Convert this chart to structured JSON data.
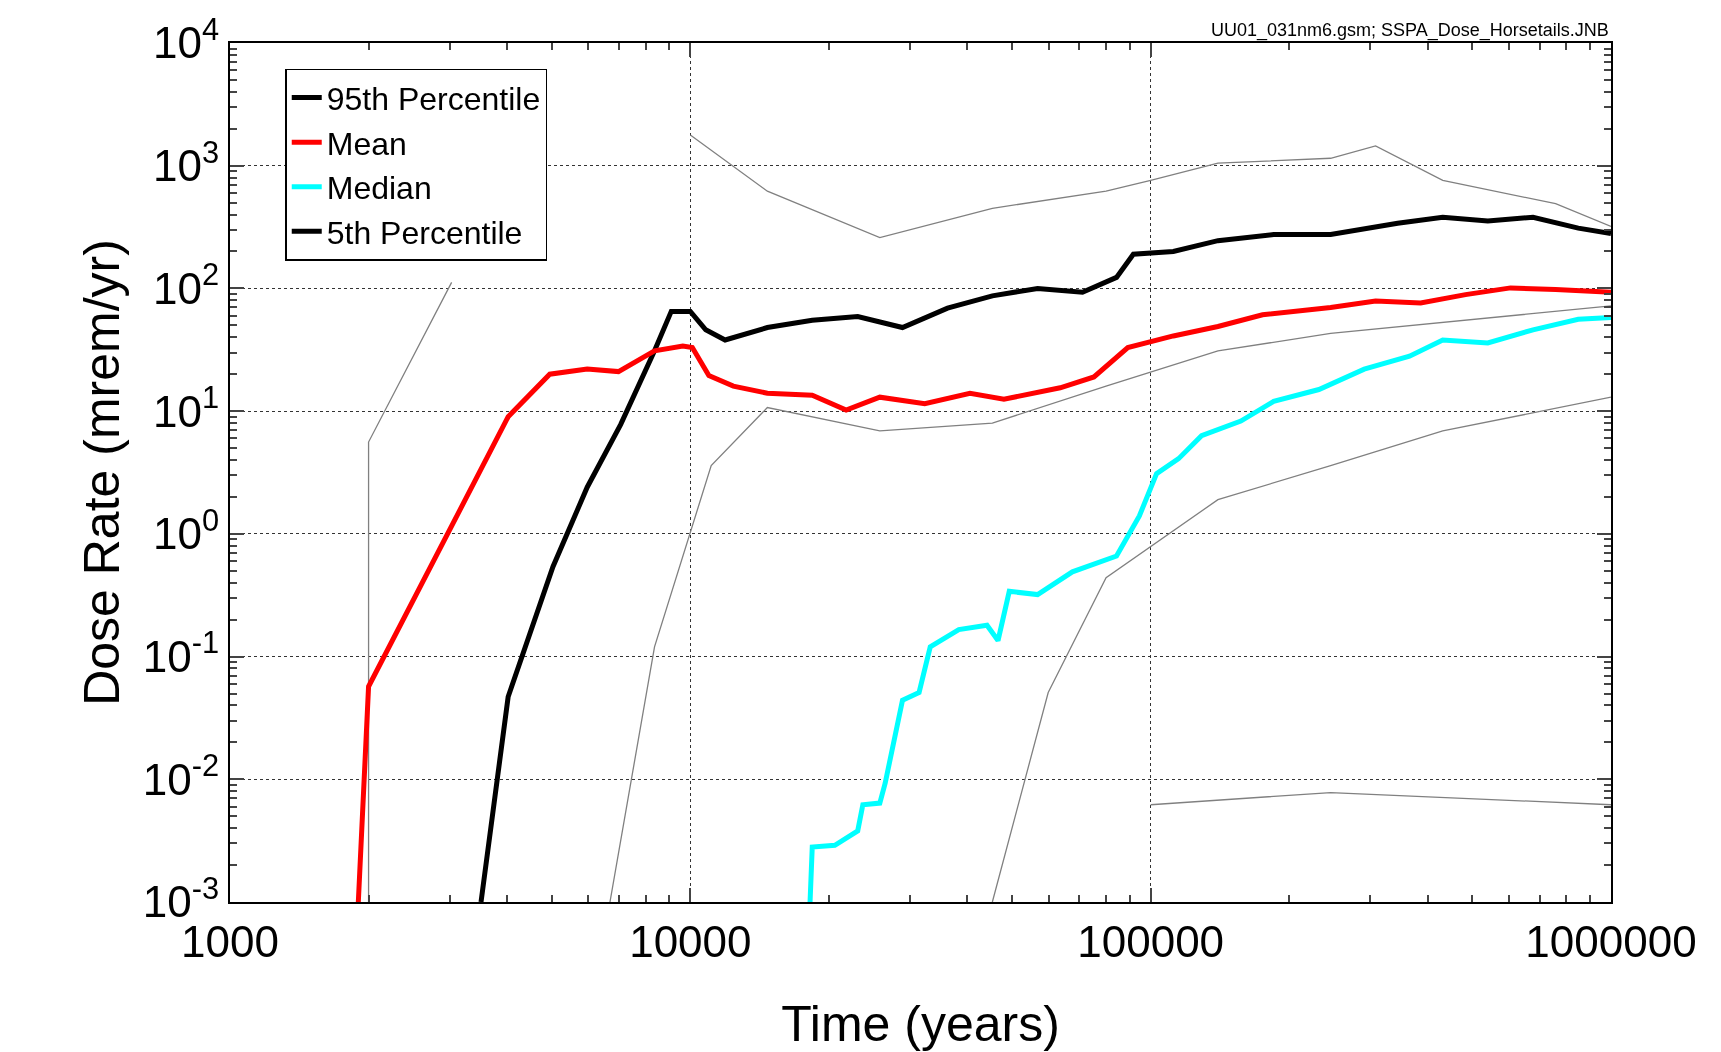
{
  "chart_data": {
    "type": "line",
    "xlabel": "Time (years)",
    "ylabel": "Dose Rate (mrem/yr)",
    "annotations": [
      "UU01_031nm6.gsm; SSPA_Dose_Horsetails.JNB"
    ],
    "log": "xy",
    "grid": true,
    "legend": "top left",
    "marker": "none",
    "line_style": "solid",
    "xlim": [
      1000,
      1000000
    ],
    "xticks": [
      1000,
      10000,
      100000,
      1000000
    ],
    "ylim": [
      0.001,
      10000
    ],
    "yticks": [
      {
        "value": 0.001,
        "label": "10$^{-3}$"
      },
      {
        "value": 0.01,
        "label": "10$^{-2}$"
      },
      {
        "value": 0.1,
        "label": "10$^{-1}$"
      },
      {
        "value": 1,
        "label": "10$^{0}$"
      },
      {
        "value": 10,
        "label": "10$^{1}$"
      },
      {
        "value": 100,
        "label": "10$^{2}$"
      },
      {
        "value": 1000,
        "label": "10$^{3}$"
      },
      {
        "value": 10000,
        "label": "10$^{4}$"
      }
    ],
    "series": [
      {
        "color": "#808080",
        "x": [
          2000,
          2000,
          3030
        ],
        "values": [
          0.001,
          5.6,
          112
        ]
      },
      {
        "color": "#808080",
        "x": [
          10000,
          14700,
          25800,
          45300,
          80000,
          100000,
          140000,
          246000,
          308000,
          431000,
          758000,
          1000000
        ],
        "values": [
          1780,
          620,
          260,
          450,
          620,
          760,
          1050,
          1150,
          1450,
          760,
          490,
          320
        ]
      },
      {
        "color": "#808080",
        "x": [
          100000,
          246000,
          1000000
        ],
        "values": [
          0.0062,
          0.0078,
          0.0062
        ]
      },
      {
        "color": "#808080",
        "x": [
          6690,
          8360,
          11100,
          14700,
          25800,
          45300,
          80000,
          140000,
          246000,
          1000000
        ],
        "values": [
          0.001,
          0.12,
          3.6,
          10.7,
          6.9,
          8,
          16,
          31,
          43,
          72
        ]
      },
      {
        "color": "#808080",
        "x": [
          45300,
          59900,
          80000,
          140000,
          246000,
          431000,
          1000000
        ],
        "values": [
          0.001,
          0.051,
          0.44,
          1.9,
          3.6,
          6.9,
          13
        ]
      },
      {
        "name": "95th Percentile",
        "color": "#000000",
        "x": [
          3510,
          4020,
          5030,
          5970,
          7060,
          8360,
          9090,
          10000,
          10800,
          11900,
          14700,
          18400,
          23100,
          28900,
          36200,
          45300,
          56800,
          71100,
          84300,
          91700,
          112000,
          140000,
          185000,
          246000,
          344000,
          431000,
          540000,
          677000,
          849000,
          1000000
        ],
        "values": [
          0.001,
          0.047,
          0.54,
          2.4,
          7.8,
          31,
          65,
          65,
          46,
          38,
          48,
          55,
          59,
          48,
          69,
          87,
          100,
          93,
          123,
          190,
          200,
          245,
          275,
          275,
          340,
          380,
          355,
          380,
          310,
          280
        ]
      },
      {
        "name": "Mean",
        "color": "#ff0000",
        "x": [
          1900,
          2000,
          4020,
          4950,
          5970,
          6980,
          8360,
          9630,
          10100,
          10970,
          12400,
          14700,
          18400,
          21800,
          25800,
          32300,
          40500,
          48000,
          63600,
          75300,
          89200,
          112000,
          140000,
          175000,
          246000,
          308000,
          386000,
          483000,
          605000,
          758000,
          1000000
        ],
        "values": [
          0.001,
          0.057,
          9,
          20,
          22,
          21,
          31,
          34,
          33,
          19.5,
          16,
          14,
          13.5,
          10.2,
          13,
          11.5,
          14,
          12.5,
          15.5,
          19,
          33,
          41,
          49,
          61,
          70,
          79,
          76,
          89,
          101,
          98,
          93
        ]
      },
      {
        "name": "Median",
        "color": "#00ffff",
        "x": [
          18200,
          18400,
          20600,
          23100,
          23700,
          25800,
          26500,
          28900,
          31400,
          33200,
          38300,
          44100,
          46600,
          49300,
          56800,
          67600,
          84300,
          94500,
          103000,
          115000,
          129000,
          157000,
          185000,
          232000,
          291000,
          365000,
          431000,
          540000,
          677000,
          849000,
          1000000
        ],
        "values": [
          0.001,
          0.0028,
          0.0029,
          0.0038,
          0.0062,
          0.0064,
          0.0093,
          0.044,
          0.051,
          0.12,
          0.166,
          0.18,
          0.135,
          0.34,
          0.32,
          0.49,
          0.66,
          1.4,
          3.1,
          4.1,
          6.3,
          8.3,
          12,
          15,
          22,
          28,
          38,
          36,
          46,
          56,
          58
        ]
      },
      {
        "name": "5th Percentile",
        "color": "#000000"
      }
    ]
  }
}
